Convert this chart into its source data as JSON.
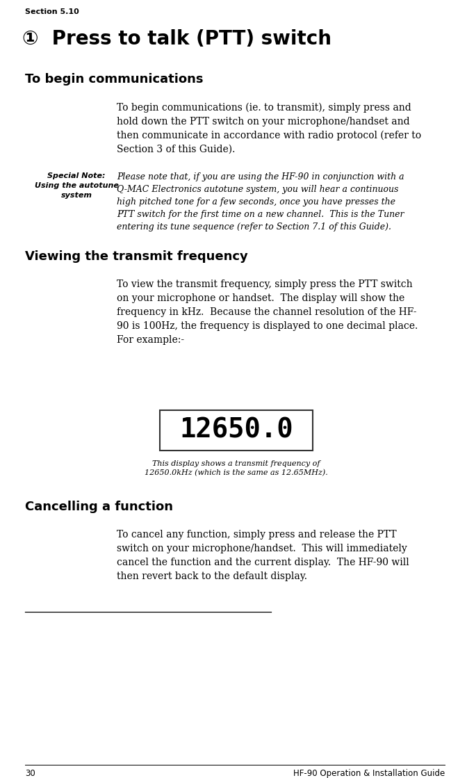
{
  "section_label": "Section 5.10",
  "page_number": "30",
  "footer_right": "HF-90 Operation & Installation Guide",
  "title_symbol": "①",
  "title_text": "  Press to talk (PTT) switch",
  "heading1": "To begin communications",
  "heading2": "Viewing the transmit frequency",
  "heading3": "Cancelling a function",
  "special_note_label1": "Special Note:",
  "special_note_label2": "Using the autotune",
  "special_note_label3": "system",
  "display_text": "12650.0",
  "display_caption1": "This display shows a transmit frequency of",
  "display_caption2": "12650.0kHz (which is the same as 12.65MHz).",
  "bg_color": "#ffffff",
  "text_color": "#000000",
  "display_bg": "#ffffff",
  "display_fg": "#000000",
  "display_border": "#333333"
}
